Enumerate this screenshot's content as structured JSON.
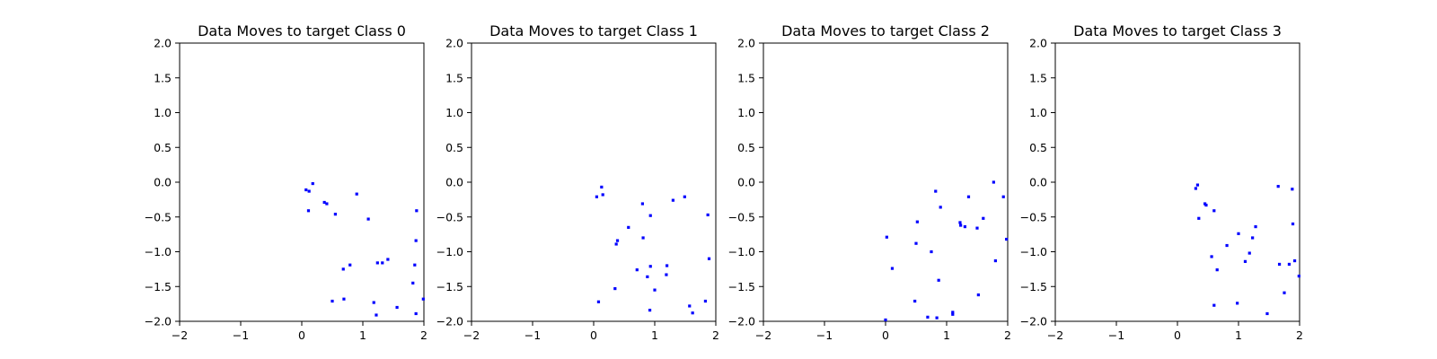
{
  "chart_data": [
    {
      "type": "scatter",
      "title": "Data Moves to target Class 0",
      "xlabel": "",
      "ylabel": "",
      "xlim": [
        -2,
        2
      ],
      "ylim": [
        -2,
        2
      ],
      "xticks": [
        "−2",
        "−1",
        "0",
        "1",
        "2"
      ],
      "yticks": [
        "−2.0",
        "−1.5",
        "−1.0",
        "−0.5",
        "0.0",
        "0.5",
        "1.0",
        "1.5",
        "2.0"
      ],
      "grid": false,
      "marker_color": "#0000ff",
      "points": [
        [
          0.07,
          -0.11
        ],
        [
          0.12,
          -0.13
        ],
        [
          0.18,
          -0.02
        ],
        [
          0.11,
          -0.41
        ],
        [
          0.37,
          -0.29
        ],
        [
          0.41,
          -0.31
        ],
        [
          0.55,
          -0.46
        ],
        [
          0.9,
          -0.17
        ],
        [
          1.09,
          -0.53
        ],
        [
          0.5,
          -1.71
        ],
        [
          0.69,
          -1.68
        ],
        [
          0.68,
          -1.25
        ],
        [
          0.79,
          -1.19
        ],
        [
          1.24,
          -1.16
        ],
        [
          1.32,
          -1.16
        ],
        [
          1.41,
          -1.11
        ],
        [
          1.18,
          -1.73
        ],
        [
          1.22,
          -1.91
        ],
        [
          1.56,
          -1.8
        ],
        [
          1.82,
          -1.45
        ],
        [
          1.85,
          -1.19
        ],
        [
          1.87,
          -0.84
        ],
        [
          1.88,
          -0.41
        ],
        [
          1.87,
          -1.89
        ],
        [
          1.99,
          -1.68
        ]
      ]
    },
    {
      "type": "scatter",
      "title": "Data Moves to target Class 1",
      "xlabel": "",
      "ylabel": "",
      "xlim": [
        -2,
        2
      ],
      "ylim": [
        -2,
        2
      ],
      "xticks": [
        "−2",
        "−1",
        "0",
        "1",
        "2"
      ],
      "yticks": [
        "−2.0",
        "−1.5",
        "−1.0",
        "−0.5",
        "0.0",
        "0.5",
        "1.0",
        "1.5",
        "2.0"
      ],
      "grid": false,
      "marker_color": "#0000ff",
      "points": [
        [
          0.05,
          -0.21
        ],
        [
          0.13,
          -0.07
        ],
        [
          0.15,
          -0.18
        ],
        [
          0.08,
          -1.72
        ],
        [
          0.35,
          -1.53
        ],
        [
          0.37,
          -0.89
        ],
        [
          0.39,
          -0.84
        ],
        [
          0.57,
          -0.65
        ],
        [
          0.71,
          -1.26
        ],
        [
          0.8,
          -0.31
        ],
        [
          0.81,
          -0.8
        ],
        [
          0.88,
          -1.36
        ],
        [
          0.93,
          -0.48
        ],
        [
          0.93,
          -1.21
        ],
        [
          0.92,
          -1.84
        ],
        [
          1.0,
          -1.55
        ],
        [
          1.19,
          -1.33
        ],
        [
          1.2,
          -1.2
        ],
        [
          1.3,
          -0.26
        ],
        [
          1.49,
          -0.21
        ],
        [
          1.57,
          -1.78
        ],
        [
          1.62,
          -1.88
        ],
        [
          1.83,
          -1.71
        ],
        [
          1.87,
          -0.47
        ],
        [
          1.89,
          -1.1
        ]
      ]
    },
    {
      "type": "scatter",
      "title": "Data Moves to target Class 2",
      "xlabel": "",
      "ylabel": "",
      "xlim": [
        -2,
        2
      ],
      "ylim": [
        -2,
        2
      ],
      "xticks": [
        "−2",
        "−1",
        "0",
        "1",
        "2"
      ],
      "yticks": [
        "−2.0",
        "−1.5",
        "−1.0",
        "−0.5",
        "0.0",
        "0.5",
        "1.0",
        "1.5",
        "2.0"
      ],
      "grid": false,
      "marker_color": "#0000ff",
      "points": [
        [
          0.02,
          -0.79
        ],
        [
          0.0,
          -1.98
        ],
        [
          0.11,
          -1.24
        ],
        [
          0.48,
          -1.71
        ],
        [
          0.5,
          -0.88
        ],
        [
          0.52,
          -0.57
        ],
        [
          0.69,
          -1.94
        ],
        [
          0.75,
          -1.0
        ],
        [
          0.82,
          -0.13
        ],
        [
          0.84,
          -1.95
        ],
        [
          0.87,
          -1.41
        ],
        [
          0.9,
          -0.36
        ],
        [
          1.1,
          -1.87
        ],
        [
          1.1,
          -1.9
        ],
        [
          1.22,
          -0.58
        ],
        [
          1.23,
          -0.62
        ],
        [
          1.3,
          -0.64
        ],
        [
          1.36,
          -0.21
        ],
        [
          1.5,
          -0.66
        ],
        [
          1.52,
          -1.62
        ],
        [
          1.6,
          -0.52
        ],
        [
          1.77,
          0.0
        ],
        [
          1.8,
          -1.13
        ],
        [
          1.93,
          -0.21
        ],
        [
          1.98,
          -0.82
        ]
      ]
    },
    {
      "type": "scatter",
      "title": "Data Moves to target Class 3",
      "xlabel": "",
      "ylabel": "",
      "xlim": [
        -2,
        2
      ],
      "ylim": [
        -2,
        2
      ],
      "xticks": [
        "−2",
        "−1",
        "0",
        "1",
        "2"
      ],
      "yticks": [
        "−2.0",
        "−1.5",
        "−1.0",
        "−0.5",
        "0.0",
        "0.5",
        "1.0",
        "1.5",
        "2.0"
      ],
      "grid": false,
      "marker_color": "#0000ff",
      "points": [
        [
          0.3,
          -0.09
        ],
        [
          0.33,
          -0.04
        ],
        [
          0.35,
          -0.52
        ],
        [
          0.45,
          -0.31
        ],
        [
          0.47,
          -0.33
        ],
        [
          0.6,
          -0.41
        ],
        [
          0.56,
          -1.07
        ],
        [
          0.6,
          -1.77
        ],
        [
          0.65,
          -1.26
        ],
        [
          0.81,
          -0.91
        ],
        [
          0.98,
          -1.74
        ],
        [
          1.0,
          -0.74
        ],
        [
          1.11,
          -1.14
        ],
        [
          1.18,
          -1.02
        ],
        [
          1.23,
          -0.8
        ],
        [
          1.28,
          -0.64
        ],
        [
          1.47,
          -1.89
        ],
        [
          1.65,
          -0.06
        ],
        [
          1.67,
          -1.18
        ],
        [
          1.75,
          -1.59
        ],
        [
          1.83,
          -1.18
        ],
        [
          1.88,
          -0.1
        ],
        [
          1.89,
          -0.6
        ],
        [
          1.92,
          -1.13
        ],
        [
          1.99,
          -1.35
        ]
      ]
    }
  ]
}
